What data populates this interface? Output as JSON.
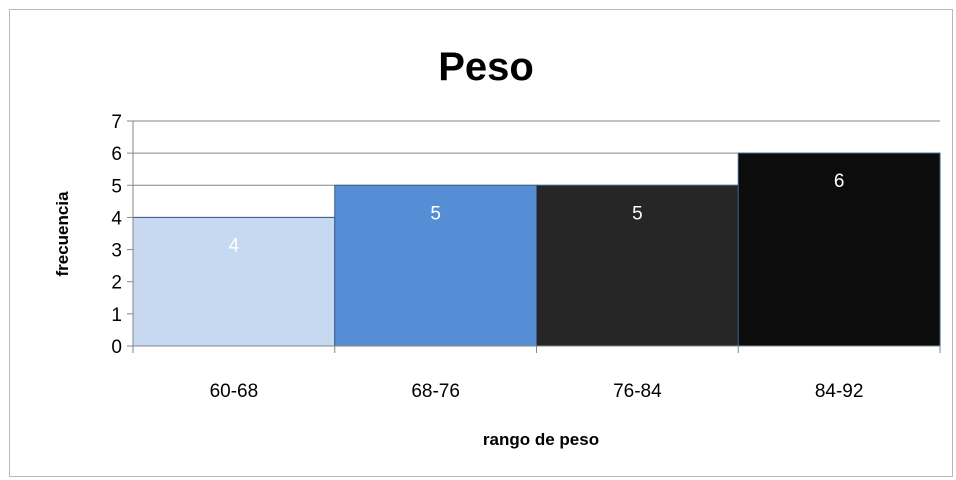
{
  "chart_data": {
    "type": "bar",
    "title": "Peso",
    "xlabel": "rango de peso",
    "ylabel": "frecuencia",
    "categories": [
      "60-68",
      "68-76",
      "76-84",
      "84-92"
    ],
    "values": [
      4,
      5,
      5,
      6
    ],
    "data_labels": [
      "4",
      "5",
      "5",
      "6"
    ],
    "ylim": [
      0,
      7
    ],
    "yticks": [
      0,
      1,
      2,
      3,
      4,
      5,
      6,
      7
    ],
    "grid": true,
    "legend": "none",
    "bar_colors": [
      "#c6d9f1",
      "#558ed5",
      "#262626",
      "#0c0c0c"
    ],
    "label_colors": [
      "#ffffff",
      "#ffffff",
      "#ffffff",
      "#ffffff"
    ],
    "gridline_color": "#868686"
  }
}
